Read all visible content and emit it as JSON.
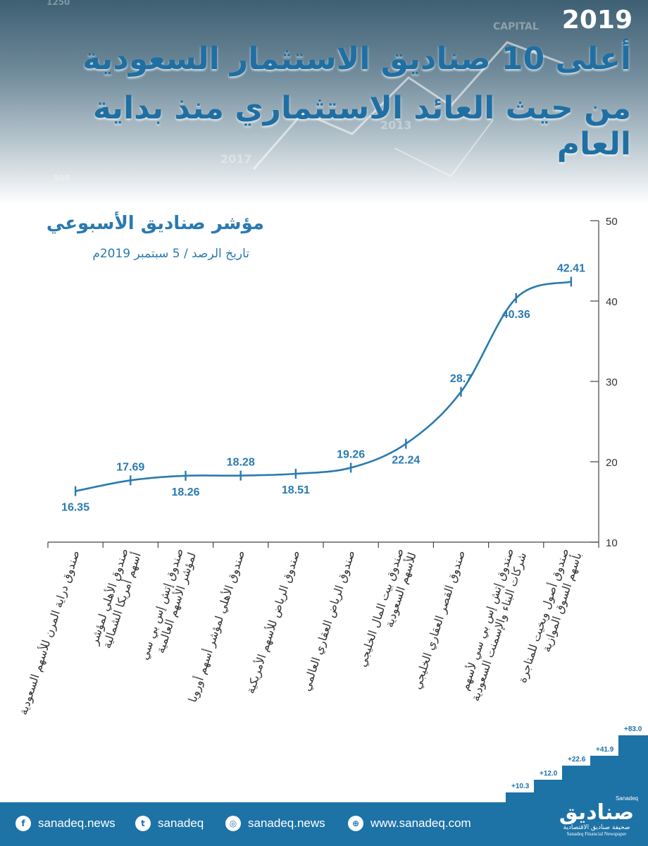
{
  "header": {
    "year": "2019",
    "title_line1": "أعلى 10 صناديق الاستثمار السعودية",
    "title_line2": "من حيث العائد الاستثماري منذ بداية العام",
    "background_text": [
      "1250",
      "CAPITAL",
      "2013",
      "2017",
      "500"
    ]
  },
  "chart_data": {
    "type": "line",
    "title": "مؤشر صناديق الأسبوعي",
    "subtitle": "تاريخ الرصد / 5 سبتمبر 2019م",
    "categories": [
      "صندوق دراية المرن للأسهم السعودية",
      "صندوق الأهلي لمؤشر أسهم أمريكا الشمالية",
      "صندوق إتش إس بي سي لمؤشر الأسهم العالمية",
      "صندوق الأهلي لمؤشر أسهم أوروبا",
      "صندوق الرياض للأسهم الأمريكية",
      "صندوق الرياض العقاري العالمي",
      "صندوق بيت المال الخليجي للأسهم السعودية",
      "صندوق القصر العقاري الخليجي",
      "صندوق إتش إس بي سي لأسهم شركات البناء والإسمنت السعودية",
      "صندوق أصول وبخيت للمتاجرة بأسهم السوق الموازية"
    ],
    "category_lines": [
      [
        "صندوق دراية المرن للأسهم السعودية"
      ],
      [
        "صندوق الأهلي لمؤشر",
        "أسهم أمريكا الشمالية"
      ],
      [
        "صندوق إتش إس بي سي",
        "لمؤشر الأسهم العالمية"
      ],
      [
        "صندوق الأهلي لمؤشر أسهم أوروبا"
      ],
      [
        "صندوق الرياض للأسهم الأمريكية"
      ],
      [
        "صندوق الرياض العقاري العالمي"
      ],
      [
        "صندوق بيت المال الخليجي",
        "للأسهم السعودية"
      ],
      [
        "صندوق القصر العقاري الخليجي"
      ],
      [
        "صندوق إتش إس بي سي لأسهم",
        "شركات البناء والإسمنت السعودية"
      ],
      [
        "صندوق أصول وبخيت للمتاجرة",
        "بأسهم السوق الموازية"
      ]
    ],
    "values": [
      16.35,
      17.69,
      18.26,
      18.28,
      18.51,
      19.26,
      22.24,
      28.7,
      40.36,
      42.41
    ],
    "value_labels": [
      "16.35",
      "17.69",
      "18.26",
      "18.28",
      "18.51",
      "19.26",
      "22.24",
      "28.7",
      "40.36",
      "42.41"
    ],
    "label_positions": [
      "below",
      "above",
      "below",
      "above",
      "below",
      "above",
      "below",
      "above",
      "below",
      "above"
    ],
    "ylim": [
      10,
      50
    ],
    "yticks": [
      "10",
      "20",
      "30",
      "40",
      "50"
    ],
    "y_axis_side": "right",
    "grid": false,
    "line_color": "#2a7ab0"
  },
  "footer": {
    "social": [
      {
        "icon": "facebook-icon",
        "glyph": "f",
        "text": "sanadeq.news"
      },
      {
        "icon": "twitter-icon",
        "glyph": "t",
        "text": "sanadeq"
      },
      {
        "icon": "instagram-icon",
        "glyph": "◎",
        "text": "sanadeq.news"
      },
      {
        "icon": "globe-icon",
        "glyph": "⊕",
        "text": "www.sanadeq.com"
      }
    ],
    "brand": {
      "latin_top": "Sanadeq",
      "arabic": "صناديق",
      "arabic_sub": "صحيفة صناديق الاقتصادية",
      "latin_sub": "Sanadeq Financial Newspaper"
    },
    "steps": [
      "+10.3",
      "+12.0",
      "+22.6",
      "+41.9",
      "+83.0"
    ],
    "color": "#1d72a6"
  }
}
